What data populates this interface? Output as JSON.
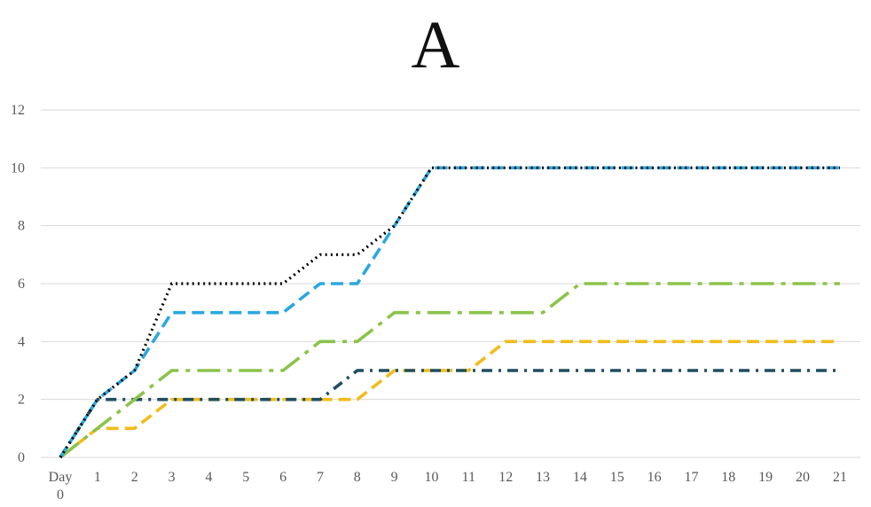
{
  "chart_data": {
    "type": "line",
    "title": "A",
    "xlabel": "",
    "ylabel": "",
    "categories": [
      "Day 0",
      "1",
      "2",
      "3",
      "4",
      "5",
      "6",
      "7",
      "8",
      "9",
      "10",
      "11",
      "12",
      "13",
      "14",
      "15",
      "16",
      "17",
      "18",
      "19",
      "20",
      "21"
    ],
    "ylim": [
      0,
      12
    ],
    "yticks": [
      "0",
      "2",
      "4",
      "6",
      "8",
      "10",
      "12"
    ],
    "grid": true,
    "legend": "none",
    "series": [
      {
        "style": "dotted",
        "color": "#000000",
        "values": [
          0,
          2,
          3,
          6,
          6,
          6,
          6,
          7,
          7,
          8,
          10,
          10,
          10,
          10,
          10,
          10,
          10,
          10,
          10,
          10,
          10,
          10
        ]
      },
      {
        "style": "dashed",
        "color": "#29A8DF",
        "values": [
          0,
          2,
          3,
          5,
          5,
          5,
          5,
          6,
          6,
          8,
          10,
          10,
          10,
          10,
          10,
          10,
          10,
          10,
          10,
          10,
          10,
          10
        ]
      },
      {
        "style": "long-dash-dot",
        "color": "#8BC34A",
        "values": [
          0,
          1,
          2,
          3,
          3,
          3,
          3,
          4,
          4,
          5,
          5,
          5,
          5,
          5,
          6,
          6,
          6,
          6,
          6,
          6,
          6,
          6
        ]
      },
      {
        "style": "dash-dot",
        "color": "#1F4E5F",
        "values": [
          0,
          2,
          2,
          2,
          2,
          2,
          2,
          2,
          3,
          3,
          3,
          3,
          3,
          3,
          3,
          3,
          3,
          3,
          3,
          3,
          3,
          3
        ]
      },
      {
        "style": "dashed",
        "color": "#F2BC1B",
        "values": [
          0,
          1,
          1,
          2,
          2,
          2,
          2,
          2,
          2,
          3,
          3,
          3,
          4,
          4,
          4,
          4,
          4,
          4,
          4,
          4,
          4,
          4
        ]
      }
    ]
  }
}
